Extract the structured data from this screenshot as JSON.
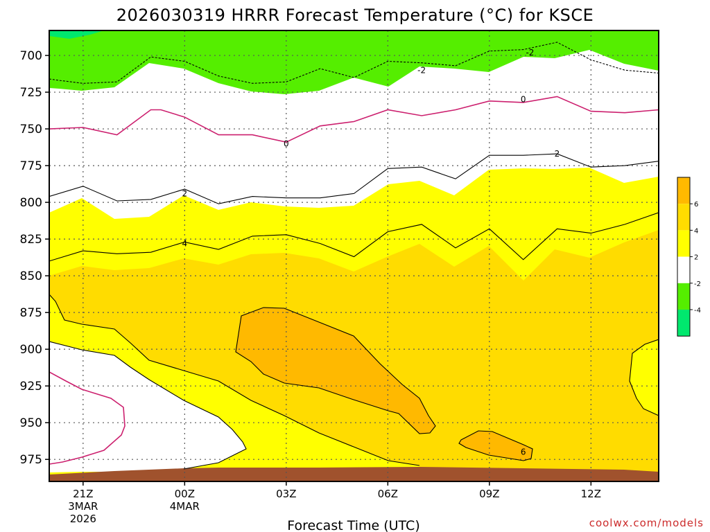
{
  "chart_data": {
    "type": "contour",
    "title": "2026030319 HRRR Forecast Temperature (°C) for KSCE",
    "xlabel": "Forecast Time (UTC)",
    "ylabel": "",
    "credit": "coolwx.com/models",
    "x_ticks": [
      {
        "x": 2,
        "label": "21Z",
        "sub1": "3MAR",
        "sub2": "2026"
      },
      {
        "x": 5,
        "label": "00Z",
        "sub1": "4MAR",
        "sub2": ""
      },
      {
        "x": 8,
        "label": "03Z",
        "sub1": "",
        "sub2": ""
      },
      {
        "x": 11,
        "label": "06Z",
        "sub1": "",
        "sub2": ""
      },
      {
        "x": 14,
        "label": "09Z",
        "sub1": "",
        "sub2": ""
      },
      {
        "x": 17,
        "label": "12Z",
        "sub1": "",
        "sub2": ""
      }
    ],
    "xlim": [
      1,
      19
    ],
    "ylim": [
      990,
      683
    ],
    "y_ticks": [
      700,
      725,
      750,
      775,
      800,
      825,
      850,
      875,
      900,
      925,
      950,
      975
    ],
    "y_tick_labels": [
      "700",
      "725",
      "750",
      "775",
      "800",
      "825",
      "850",
      "875",
      "900",
      "925",
      "950",
      "975"
    ],
    "colorbar": {
      "labels": [
        "6",
        "4",
        "2",
        "-2",
        "-4"
      ],
      "colors": [
        "#ffb900",
        "#ffdc00",
        "#ffff00",
        "#ffffff",
        "#55ee00",
        "#00e86e"
      ]
    },
    "fill_colors": {
      "green_below_m2": "#55ee00",
      "white_m2_to_2": "#ffffff",
      "yellow_2_to_4": "#ffff00",
      "gold_4_to_6": "#ffdc00",
      "orange_above_6": "#ffb900",
      "terrain": "#a0522d",
      "zero_line": "#cc1f6e"
    },
    "contour_labels": [
      {
        "text": "-2",
        "x": 12.0,
        "p": 710
      },
      {
        "text": "-2",
        "x": 15.2,
        "p": 698
      },
      {
        "text": "0",
        "x": 8.0,
        "p": 760
      },
      {
        "text": "0",
        "x": 15.0,
        "p": 730
      },
      {
        "text": "2",
        "x": 5.0,
        "p": 794
      },
      {
        "text": "2",
        "x": 16.0,
        "p": 767
      },
      {
        "text": "4",
        "x": 5.0,
        "p": 828
      },
      {
        "text": "6",
        "x": 15.0,
        "p": 970
      }
    ],
    "series": [
      {
        "level": -2,
        "points": [
          [
            1,
            716
          ],
          [
            1.3,
            717
          ],
          [
            2,
            719
          ],
          [
            3,
            718
          ],
          [
            4,
            701
          ],
          [
            5,
            704
          ],
          [
            6,
            714
          ],
          [
            7,
            719
          ],
          [
            8,
            718
          ],
          [
            9,
            709
          ],
          [
            10,
            715
          ],
          [
            11,
            704
          ],
          [
            12,
            705
          ],
          [
            13,
            707
          ],
          [
            14,
            697
          ],
          [
            15,
            696
          ],
          [
            16,
            691
          ],
          [
            17,
            703
          ],
          [
            18,
            710
          ],
          [
            19,
            712
          ]
        ]
      },
      {
        "level": 0,
        "points": [
          [
            1,
            750
          ],
          [
            2,
            749
          ],
          [
            3,
            754
          ],
          [
            4,
            737
          ],
          [
            4.3,
            737
          ],
          [
            5,
            742
          ],
          [
            6,
            754
          ],
          [
            7,
            754
          ],
          [
            8,
            759
          ],
          [
            9,
            748
          ],
          [
            10,
            745
          ],
          [
            11,
            737
          ],
          [
            12,
            741
          ],
          [
            13,
            737
          ],
          [
            14,
            731
          ],
          [
            15,
            732
          ],
          [
            16,
            728
          ],
          [
            17,
            738
          ],
          [
            18,
            739
          ],
          [
            19,
            737
          ]
        ]
      },
      {
        "level": 2,
        "points": [
          [
            1,
            796
          ],
          [
            2,
            789
          ],
          [
            3,
            799
          ],
          [
            4,
            798
          ],
          [
            5,
            791
          ],
          [
            6,
            801
          ],
          [
            7,
            796
          ],
          [
            8,
            797
          ],
          [
            9,
            797
          ],
          [
            10,
            794
          ],
          [
            11,
            777
          ],
          [
            12,
            776
          ],
          [
            13,
            784
          ],
          [
            14,
            768
          ],
          [
            15,
            768
          ],
          [
            16,
            767
          ],
          [
            17,
            776
          ],
          [
            18,
            775
          ],
          [
            19,
            772
          ]
        ]
      },
      {
        "level": 4,
        "points": [
          [
            1,
            840
          ],
          [
            2,
            833
          ],
          [
            3,
            835
          ],
          [
            4,
            834
          ],
          [
            5,
            827
          ],
          [
            6,
            832
          ],
          [
            7,
            823
          ],
          [
            8,
            822
          ],
          [
            9,
            828
          ],
          [
            10,
            837
          ],
          [
            11,
            820
          ],
          [
            12,
            815
          ],
          [
            13,
            831
          ],
          [
            14,
            818
          ],
          [
            15,
            839
          ],
          [
            16,
            818
          ],
          [
            17,
            821
          ],
          [
            18,
            815
          ],
          [
            19,
            807
          ]
        ]
      }
    ]
  }
}
